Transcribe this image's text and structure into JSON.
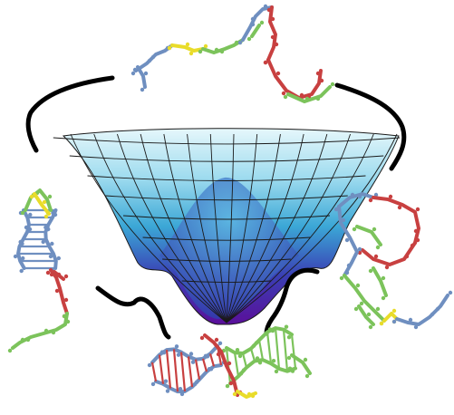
{
  "figure": {
    "background_color": "#ffffff",
    "funnel": {
      "top_color": "#e6f7fb",
      "mid_color": "#3ba7d6",
      "bottom_color": "#5a0f9a",
      "grid_color": "#1a1a1a"
    },
    "connector_color": "#000000",
    "strand_colors": {
      "blue": "#6f8fc0",
      "red": "#c84040",
      "green": "#7cc35b",
      "yellow": "#e9dc2a"
    },
    "structures": [
      {
        "id": "top",
        "label": "extended-strand-top"
      },
      {
        "id": "left",
        "label": "hairpin-left"
      },
      {
        "id": "right",
        "label": "loop-right"
      },
      {
        "id": "bottom",
        "label": "duplex-bottom"
      }
    ]
  }
}
